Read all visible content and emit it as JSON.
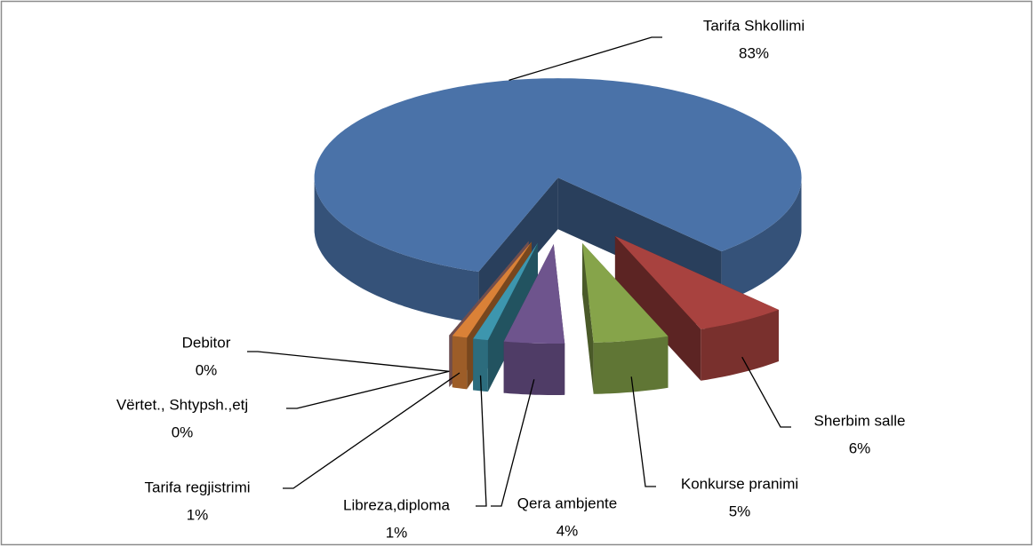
{
  "chart_data": {
    "type": "pie3d",
    "categories": [
      "Tarifa Shkollimi",
      "Sherbim salle",
      "Konkurse pranimi",
      "Qera ambjente",
      "Libreza,diploma",
      "Tarifa regjistrimi",
      "Vërtet., Shtypsh.,etj",
      "Debitor"
    ],
    "values": [
      83,
      6,
      5,
      4,
      1,
      1,
      0,
      0
    ],
    "value_labels": [
      "83%",
      "6%",
      "5%",
      "4%",
      "1%",
      "1%",
      "0%",
      "0%"
    ],
    "colors": [
      "#4a72a8",
      "#a8423f",
      "#86a44a",
      "#6e548d",
      "#3d96ae",
      "#da8137",
      "#8ea5cb",
      "#ce8e8d"
    ]
  }
}
